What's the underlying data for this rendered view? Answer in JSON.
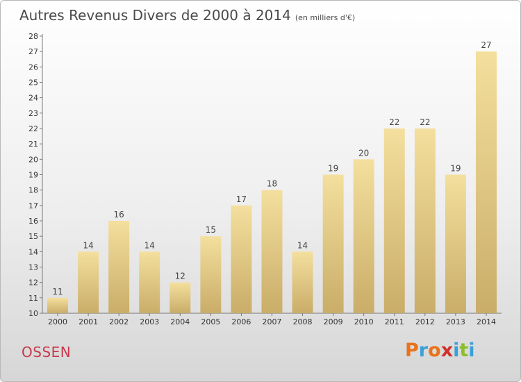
{
  "header": {
    "title": "Autres Revenus Divers de 2000 à 2014",
    "unit": "(en milliers d'€)"
  },
  "footer": {
    "city": "OSSEN",
    "logo_text": "Proxiti"
  },
  "colors": {
    "bar_light": "#f4df9e",
    "bar_dark": "#c9ad68",
    "city": "#c8374a",
    "logo_letters": [
      "#e8731a",
      "#3aa0d8",
      "#e8731a",
      "#d0312d",
      "#3aa0d8",
      "#8bbf2a",
      "#3aa0d8"
    ]
  },
  "chart_data": {
    "type": "bar",
    "title": "Autres Revenus Divers de 2000 à 2014",
    "subtitle": "(en milliers d'€)",
    "categories": [
      "2000",
      "2001",
      "2002",
      "2003",
      "2004",
      "2005",
      "2006",
      "2007",
      "2008",
      "2009",
      "2010",
      "2011",
      "2012",
      "2013",
      "2014"
    ],
    "values": [
      11,
      14,
      16,
      14,
      12,
      15,
      17,
      18,
      14,
      19,
      20,
      22,
      22,
      19,
      27
    ],
    "ylim": [
      10,
      28
    ],
    "yticks": [
      10,
      11,
      12,
      13,
      14,
      15,
      16,
      17,
      18,
      19,
      20,
      21,
      22,
      23,
      24,
      25,
      26,
      27,
      28
    ],
    "grid": false,
    "data_labels": true
  }
}
